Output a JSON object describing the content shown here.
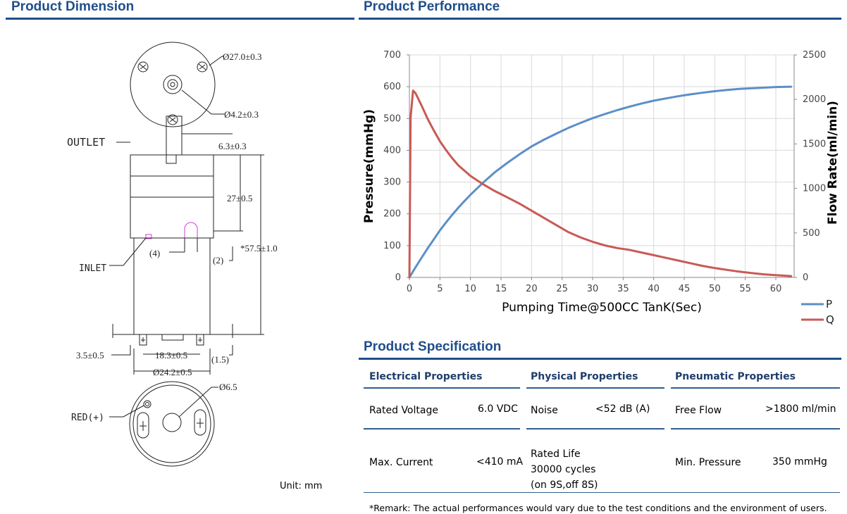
{
  "headings": {
    "dimension": "Product Dimension",
    "performance": "Product Performance",
    "specification": "Product Specification"
  },
  "dimension": {
    "outlet_label": "OUTLET",
    "inlet_label": "INLET",
    "red_label": "RED(+)",
    "d_outer": "Ø27.0±0.3",
    "d_shaft": "Ø4.2±0.3",
    "outlet_len": "6.3±0.3",
    "body_h": "27±0.5",
    "total_h": "*57.5±1.0",
    "p4": "(4)",
    "p2": "(2)",
    "pin_w": "3.5±0.5",
    "pin_gap": "18.3±0.5",
    "pin_h": "(1.5)",
    "d_motor": "Ø24.2±0.5",
    "d_boss": "Ø6.5",
    "unit": "Unit: mm"
  },
  "chart_data": {
    "type": "line",
    "xlabel": "Pumping Time@500CC TanK(Sec)",
    "ylabel_left": "Pressure(mmHg)",
    "ylabel_right": "Flow Rate(ml/min)",
    "xlim": [
      0,
      63
    ],
    "ylim_left": [
      0,
      700
    ],
    "ylim_right": [
      0,
      2500
    ],
    "x_ticks": [
      0,
      5,
      10,
      15,
      20,
      25,
      30,
      35,
      40,
      45,
      50,
      55,
      60
    ],
    "y_ticks_left": [
      0,
      100,
      200,
      300,
      400,
      500,
      600,
      700
    ],
    "y_ticks_right": [
      0,
      500,
      1000,
      1500,
      2000,
      2500
    ],
    "grid": true,
    "legend_position": "bottom-right",
    "series": [
      {
        "name": "P",
        "axis": "left",
        "color": "#5b8fc7",
        "x": [
          0,
          1,
          2,
          3,
          4,
          5,
          6,
          7,
          8,
          9,
          10,
          12,
          14,
          16,
          18,
          20,
          22,
          24,
          26,
          28,
          30,
          32,
          34,
          36,
          38,
          40,
          42,
          44,
          46,
          48,
          50,
          52,
          54,
          56,
          58,
          60,
          62.5
        ],
        "values": [
          0,
          32,
          62,
          92,
          120,
          148,
          173,
          197,
          219,
          240,
          260,
          297,
          331,
          360,
          387,
          412,
          433,
          452,
          470,
          486,
          501,
          514,
          526,
          537,
          547,
          556,
          563,
          570,
          576,
          581,
          586,
          590,
          593,
          595,
          597,
          599,
          600
        ]
      },
      {
        "name": "Q",
        "axis": "right",
        "color": "#c85a55",
        "x": [
          0,
          0.2,
          0.6,
          1,
          2,
          3,
          4,
          5,
          6,
          7,
          8,
          9,
          10,
          12,
          14,
          16,
          18,
          20,
          22,
          24,
          26,
          28,
          30,
          32,
          34,
          36,
          38,
          40,
          42,
          44,
          46,
          48,
          50,
          52,
          54,
          56,
          58,
          60,
          62.5
        ],
        "values": [
          0,
          1800,
          2100,
          2070,
          1930,
          1780,
          1650,
          1530,
          1430,
          1340,
          1260,
          1200,
          1140,
          1050,
          970,
          900,
          830,
          750,
          670,
          590,
          510,
          450,
          400,
          360,
          330,
          310,
          280,
          250,
          220,
          190,
          160,
          130,
          105,
          85,
          65,
          50,
          35,
          25,
          15
        ]
      }
    ]
  },
  "spec": {
    "electrical": {
      "header": "Electrical Properties",
      "rows": [
        {
          "label": "Rated Voltage",
          "value": "6.0 VDC"
        },
        {
          "label": "Max. Current",
          "value": "<410 mA"
        }
      ]
    },
    "physical": {
      "header": "Physical Properties",
      "noise_label": "Noise",
      "noise_value": "<52 dB (A)",
      "life_label": "Rated Life",
      "life_cycles": "30000 cycles",
      "life_cond": "(on 9S,off 8S)"
    },
    "pneumatic": {
      "header": "Pneumatic Properties",
      "rows": [
        {
          "label": "Free Flow",
          "value": ">1800 ml/min"
        },
        {
          "label": "Min. Pressure",
          "value": "350 mmHg"
        }
      ]
    },
    "remark": "*Remark: The actual performances would vary due to the test conditions and the environment of users."
  }
}
